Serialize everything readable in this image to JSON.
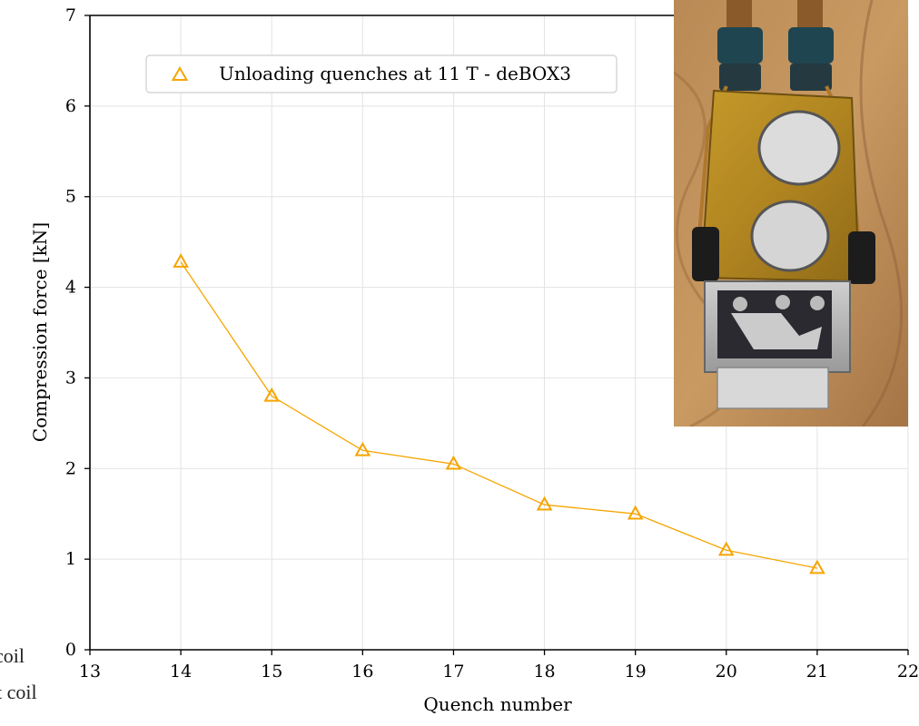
{
  "chart_data": {
    "type": "line",
    "xlabel": "Quench number",
    "ylabel": "Compression force [kN]",
    "xlim": [
      13,
      22
    ],
    "ylim": [
      0,
      7
    ],
    "xticks": [
      13,
      14,
      15,
      16,
      17,
      18,
      19,
      20,
      21,
      22
    ],
    "yticks": [
      0,
      1,
      2,
      3,
      4,
      5,
      6,
      7
    ],
    "grid": true,
    "legend_position": "top-left",
    "series": [
      {
        "name": "Unloading quenches at 11 T - deBOX3",
        "marker": "triangle-open",
        "color": "#f5a500",
        "x": [
          14,
          15,
          16,
          17,
          18,
          19,
          20,
          21
        ],
        "y": [
          4.28,
          2.8,
          2.2,
          2.05,
          1.6,
          1.5,
          1.1,
          0.9
        ]
      }
    ]
  },
  "overflow_text": [
    "coil",
    "t coil"
  ],
  "inset_photo": {
    "description_icon": "magnet-coil-photo-icon"
  }
}
